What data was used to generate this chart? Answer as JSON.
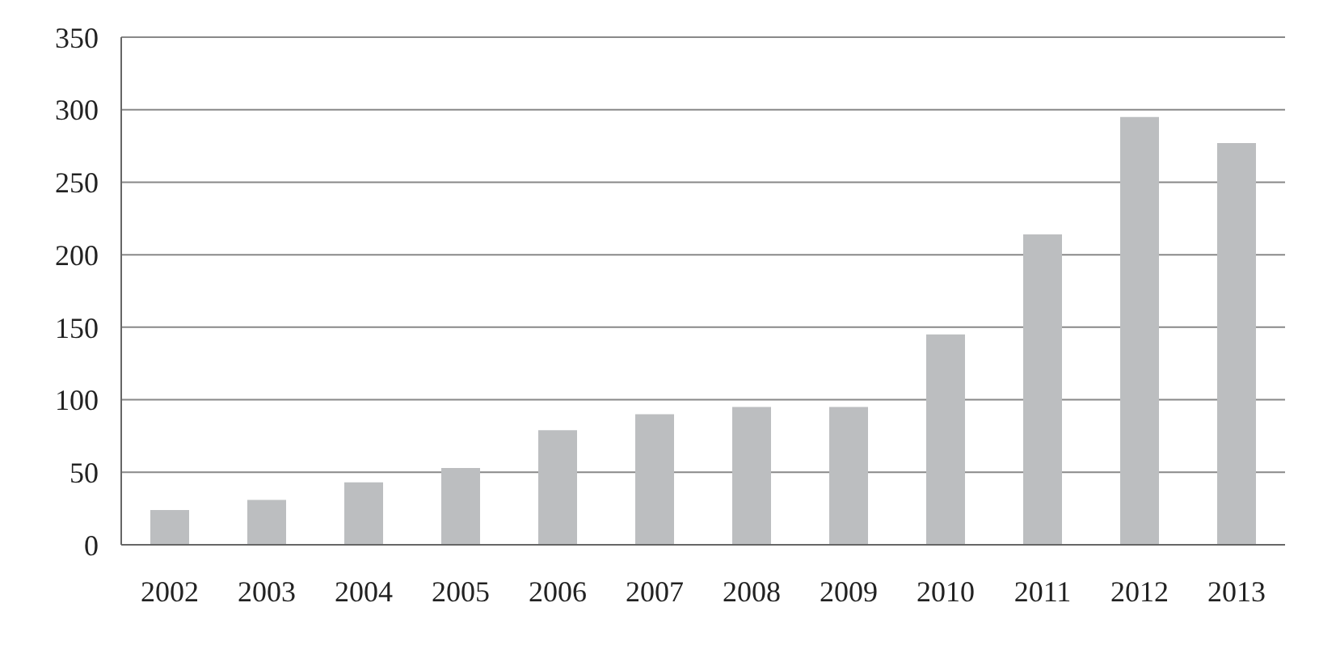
{
  "chart_data": {
    "type": "bar",
    "categories": [
      "2002",
      "2003",
      "2004",
      "2005",
      "2006",
      "2007",
      "2008",
      "2009",
      "2010",
      "2011",
      "2012",
      "2013"
    ],
    "values": [
      24,
      31,
      43,
      53,
      79,
      90,
      95,
      95,
      145,
      214,
      295,
      277
    ],
    "color": "#bcbec0",
    "ylim": [
      0,
      350
    ],
    "yticks": [
      0,
      50,
      100,
      150,
      200,
      250,
      300,
      350
    ],
    "grid": "y"
  }
}
